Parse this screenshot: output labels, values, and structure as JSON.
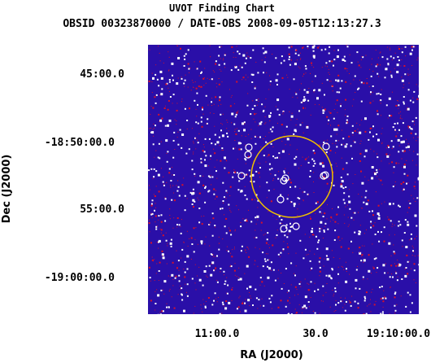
{
  "chart_data": {
    "type": "scatter",
    "title": "UVOT Finding Chart",
    "subtitle": "OBSID 00323870000 / DATE-OBS 2008-09-05T12:13:27.3",
    "xlabel": "RA (J2000)",
    "ylabel": "Dec (J2000)",
    "x_ticks": [
      "11:00.0",
      "30.0",
      "19:10:00.0"
    ],
    "y_ticks": [
      "45:00.0",
      "-18:50:00.0",
      "55:00.0",
      "-19:00:00.0"
    ],
    "background": "noisy sky image (blue with white/red speckle)",
    "error_circle_color": "#f0c000",
    "source_marker_color": "#ffffff",
    "source_count": 11
  },
  "colors": {
    "sky": "#2a0fa8",
    "speckle_red": "#d8102a",
    "speckle_white": "#ffffff",
    "circle": "#f0c000"
  }
}
